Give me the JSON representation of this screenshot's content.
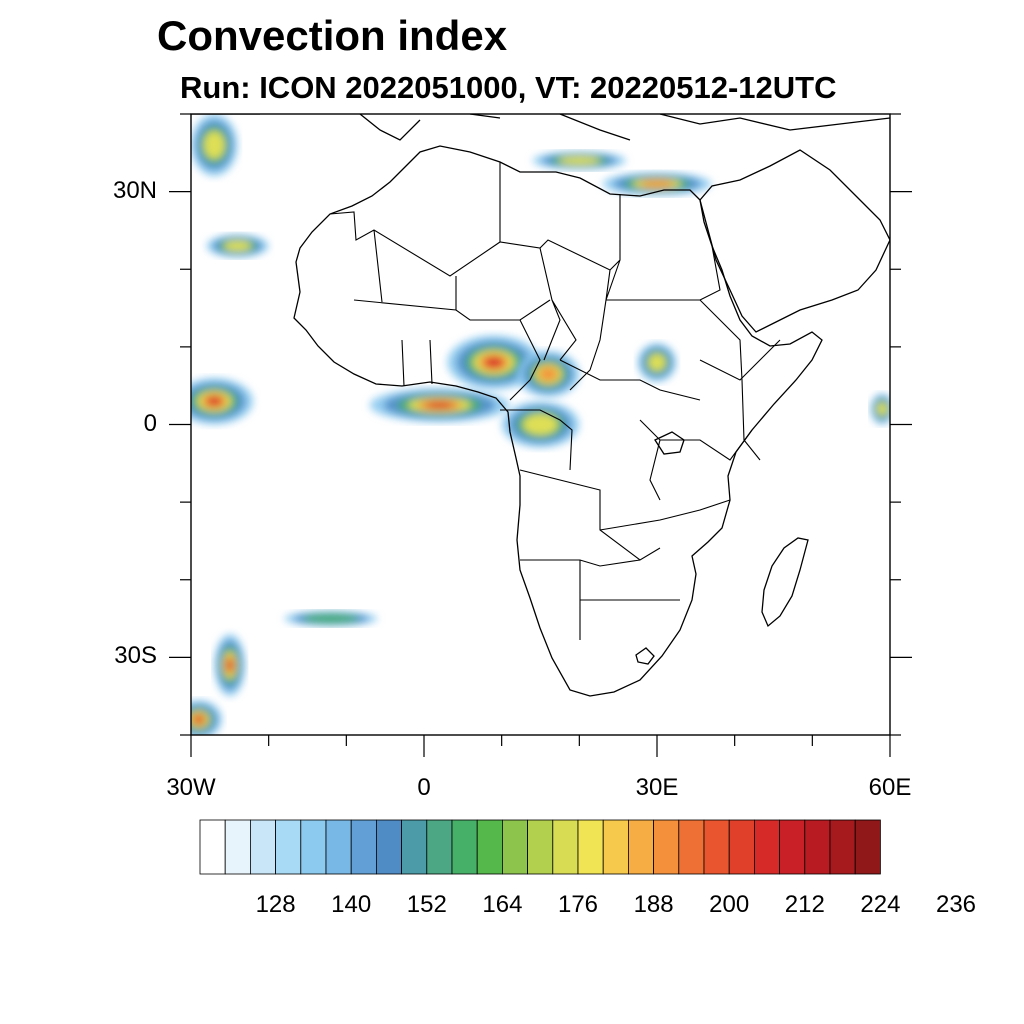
{
  "title": "Convection index",
  "subtitle": "Run: ICON 2022051000,  VT: 20220512-12UTC",
  "map": {
    "lon_range": [
      -30,
      60
    ],
    "lat_range": [
      -40,
      40
    ],
    "lat_tick_labels": [
      {
        "lat": 30,
        "label": "30N"
      },
      {
        "lat": 0,
        "label": "0"
      },
      {
        "lat": -30,
        "label": "30S"
      }
    ],
    "lon_tick_labels": [
      {
        "lon": -30,
        "label": "30W"
      },
      {
        "lon": 0,
        "label": "0"
      },
      {
        "lon": 30,
        "label": "30E"
      },
      {
        "lon": 60,
        "label": "60E"
      }
    ],
    "minor_lat_ticks": [
      -40,
      -30,
      -20,
      -10,
      0,
      10,
      20,
      30,
      40
    ],
    "minor_lon_ticks": [
      -30,
      -20,
      -10,
      0,
      10,
      20,
      30,
      40,
      50,
      60
    ]
  },
  "colorbar": {
    "levels_start": 120,
    "level_step": 4,
    "labels": [
      "128",
      "140",
      "152",
      "164",
      "176",
      "188",
      "200",
      "212",
      "224",
      "236"
    ],
    "colors": [
      "#ffffff",
      "#e8f4fb",
      "#c8e6f7",
      "#a8daf5",
      "#8ccaf0",
      "#78b8e6",
      "#629fd6",
      "#4f8cc6",
      "#4b9ba8",
      "#4ca884",
      "#47b068",
      "#55b84a",
      "#8cc44c",
      "#b2d04e",
      "#d8dc52",
      "#f0e454",
      "#f6c84c",
      "#f6ae44",
      "#f4903c",
      "#ee7034",
      "#e8552e",
      "#e0402a",
      "#d62a28",
      "#c82026",
      "#b81c22",
      "#a61a1e",
      "#901818"
    ]
  },
  "convection_cells": [
    {
      "name": "atlantic-itcz-west",
      "lon": -27,
      "lat": 3,
      "rx": 5,
      "ry": 3,
      "intensity": 1.0
    },
    {
      "name": "guinea-coast-band",
      "lon": 2,
      "lat": 2.5,
      "rx": 9,
      "ry": 2.2,
      "intensity": 0.95
    },
    {
      "name": "nigeria-cameroon",
      "lon": 9,
      "lat": 8,
      "rx": 6,
      "ry": 3.5,
      "intensity": 0.9
    },
    {
      "name": "central-african-rep",
      "lon": 16,
      "lat": 6.5,
      "rx": 4,
      "ry": 3,
      "intensity": 0.7
    },
    {
      "name": "south-sudan",
      "lon": 30,
      "lat": 8,
      "rx": 2.5,
      "ry": 2.5,
      "intensity": 0.6
    },
    {
      "name": "congo-basin",
      "lon": 15,
      "lat": 0,
      "rx": 5,
      "ry": 3,
      "intensity": 0.45
    },
    {
      "name": "east-africa-coast",
      "lon": 59,
      "lat": 2,
      "rx": 1.5,
      "ry": 2,
      "intensity": 0.55
    },
    {
      "name": "mediterranean-east",
      "lon": 30,
      "lat": 31,
      "rx": 7,
      "ry": 1.5,
      "intensity": 0.75
    },
    {
      "name": "mediterranean-central",
      "lon": 20,
      "lat": 34,
      "rx": 6,
      "ry": 1.2,
      "intensity": 0.5
    },
    {
      "name": "atlantic-north",
      "lon": -24,
      "lat": 23,
      "rx": 4,
      "ry": 1.5,
      "intensity": 0.5
    },
    {
      "name": "atlantic-northwest-arc",
      "lon": -27,
      "lat": 36,
      "rx": 3,
      "ry": 4,
      "intensity": 0.45
    },
    {
      "name": "atlantic-south",
      "lon": -25,
      "lat": -31,
      "rx": 2,
      "ry": 4,
      "intensity": 0.95
    },
    {
      "name": "atlantic-southwest-corner",
      "lon": -29,
      "lat": -38,
      "rx": 3,
      "ry": 2.5,
      "intensity": 0.8
    },
    {
      "name": "atlantic-south-streak",
      "lon": -12,
      "lat": -25,
      "rx": 6,
      "ry": 1,
      "intensity": 0.3
    }
  ]
}
